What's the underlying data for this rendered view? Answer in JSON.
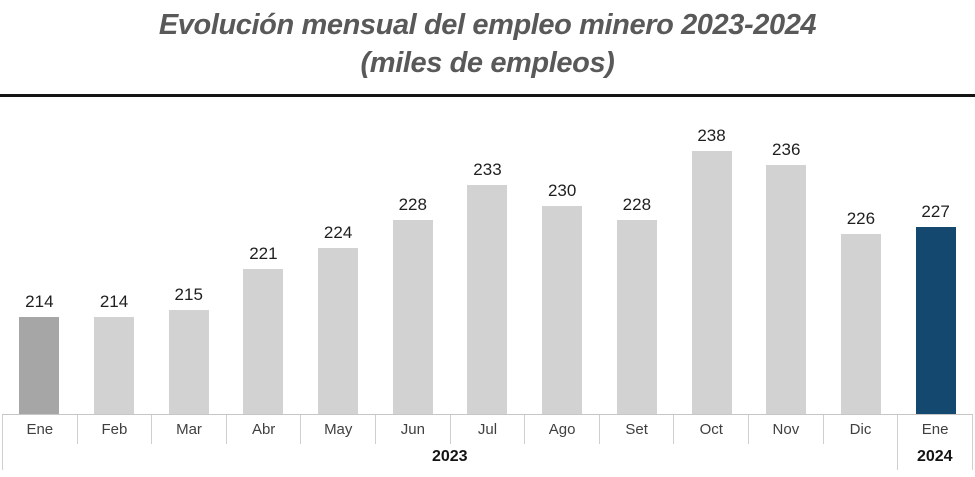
{
  "title": {
    "line1": "Evolución mensual del empleo minero 2023-2024",
    "line2": "(miles de empleos)"
  },
  "chart_data": {
    "type": "bar",
    "title": "Evolución mensual del empleo minero 2023-2024",
    "subtitle": "(miles de empleos)",
    "categories": [
      "Ene",
      "Feb",
      "Mar",
      "Abr",
      "May",
      "Jun",
      "Jul",
      "Ago",
      "Set",
      "Oct",
      "Nov",
      "Dic",
      "Ene"
    ],
    "values": [
      214,
      214,
      215,
      221,
      224,
      228,
      233,
      230,
      228,
      238,
      236,
      226,
      227
    ],
    "year_groups": [
      {
        "label": "2023",
        "span": 12
      },
      {
        "label": "2024",
        "span": 1
      }
    ],
    "ylim": [
      200,
      240
    ],
    "grid": false,
    "legend": false,
    "data_labels": true,
    "bar_colors": [
      "#a6a6a6",
      "#d2d2d2",
      "#d2d2d2",
      "#d2d2d2",
      "#d2d2d2",
      "#d2d2d2",
      "#d2d2d2",
      "#d2d2d2",
      "#d2d2d2",
      "#d2d2d2",
      "#d2d2d2",
      "#d2d2d2",
      "#15486f"
    ],
    "accent_colors": {
      "highlight_first_bar": "#a6a6a6",
      "default_bar": "#d2d2d2",
      "highlight_last_bar": "#15486f",
      "title_text": "#595959",
      "axis_line": "#cfcfcf",
      "divider_rule": "#141414"
    }
  }
}
